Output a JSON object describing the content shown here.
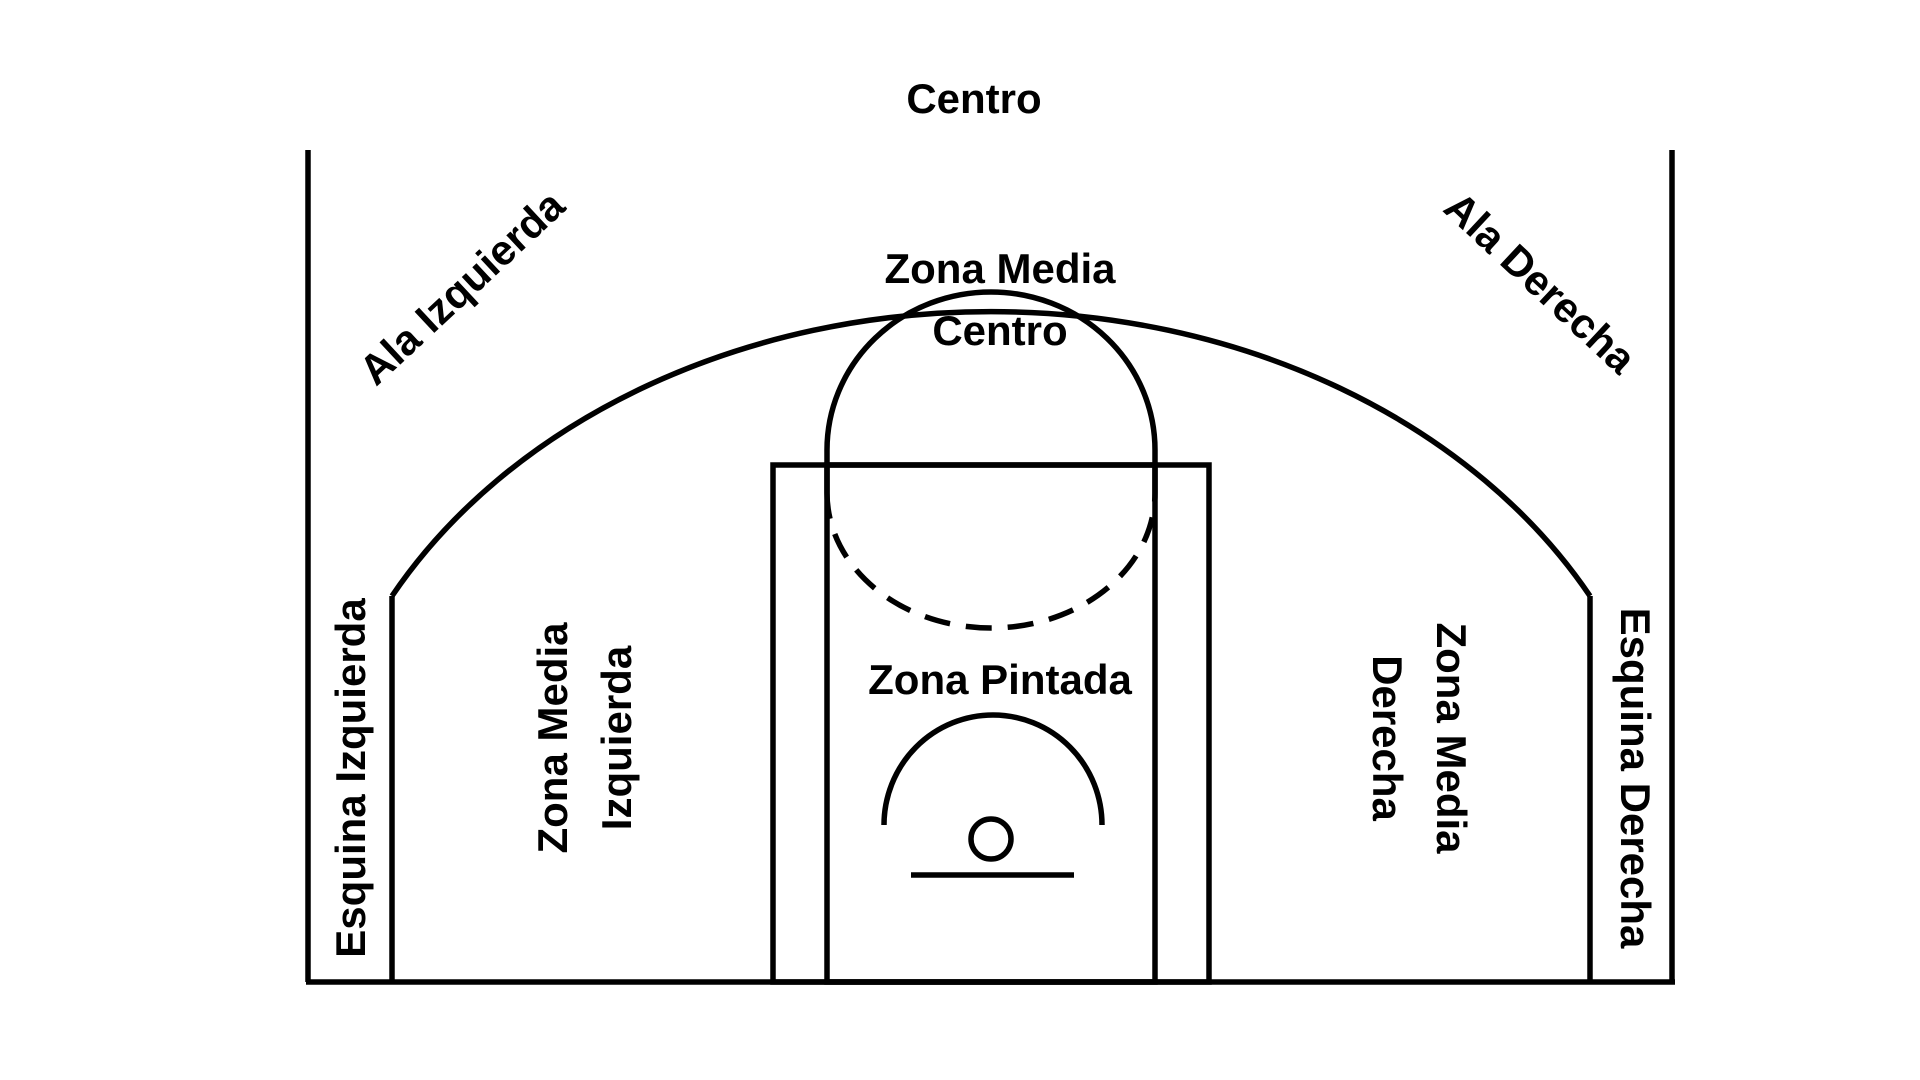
{
  "colors": {
    "background": "#ffffff",
    "lines": "#000000"
  },
  "zones": {
    "centro": "Centro",
    "ala_izquierda": "Ala Izquierda",
    "ala_derecha": "Ala Derecha",
    "zona_media_centro": [
      "Zona Media",
      "Centro"
    ],
    "zona_pintada": "Zona Pintada",
    "esquina_izquierda": "Esquina Izquierda",
    "esquina_derecha": "Esquina Derecha",
    "zona_media_izquierda": [
      "Zona Media",
      "Izquierda"
    ],
    "zona_media_derecha": [
      "Zona Media",
      "Derecha"
    ]
  }
}
